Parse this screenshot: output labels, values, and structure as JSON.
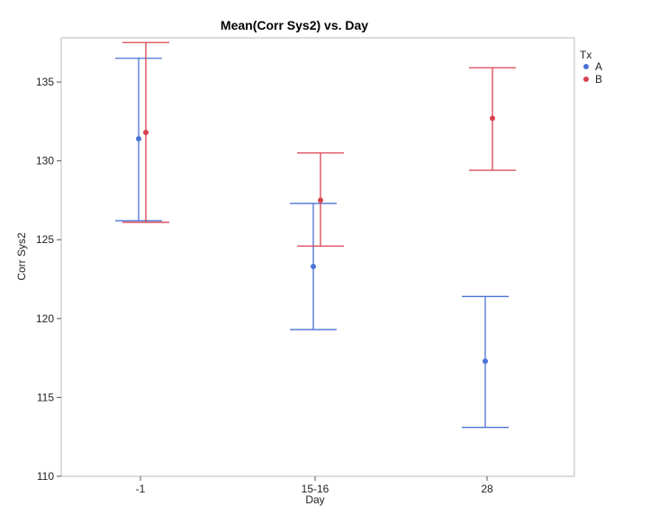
{
  "chart_data": {
    "type": "scatter",
    "title": "Mean(Corr Sys2) vs. Day",
    "xlabel": "Day",
    "ylabel": "Corr Sys2",
    "categories": [
      "-1",
      "15-16",
      "28"
    ],
    "ylim": [
      110,
      137.8
    ],
    "yticks": [
      110,
      115,
      120,
      125,
      130,
      135
    ],
    "grid": false,
    "legend": {
      "title": "Tx",
      "placement": "right-top",
      "entries": [
        "A",
        "B"
      ]
    },
    "series": [
      {
        "name": "A",
        "color": "#4a72d6",
        "points": [
          {
            "x": "-1",
            "mean": 131.4,
            "lower": 126.2,
            "upper": 136.5
          },
          {
            "x": "15-16",
            "mean": 123.3,
            "lower": 119.3,
            "upper": 127.3
          },
          {
            "x": "28",
            "mean": 117.3,
            "lower": 113.1,
            "upper": 121.4
          }
        ]
      },
      {
        "name": "B",
        "color": "#d9414f",
        "points": [
          {
            "x": "-1",
            "mean": 131.8,
            "lower": 126.1,
            "upper": 137.5
          },
          {
            "x": "15-16",
            "mean": 127.5,
            "lower": 124.6,
            "upper": 130.5
          },
          {
            "x": "28",
            "mean": 132.7,
            "lower": 129.4,
            "upper": 135.9
          }
        ]
      }
    ]
  }
}
